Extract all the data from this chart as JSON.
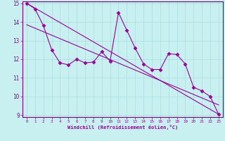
{
  "xlabel": "Windchill (Refroidissement éolien,°C)",
  "bg_color": "#c8f0f0",
  "line_color": "#990099",
  "grid_color": "#aadddd",
  "spine_color": "#770077",
  "ylim": [
    9,
    15
  ],
  "xlim": [
    -0.5,
    23.5
  ],
  "yticks": [
    9,
    10,
    11,
    12,
    13,
    14,
    15
  ],
  "xticks": [
    0,
    1,
    2,
    3,
    4,
    5,
    6,
    7,
    8,
    9,
    10,
    11,
    12,
    13,
    14,
    15,
    16,
    17,
    18,
    19,
    20,
    21,
    22,
    23
  ],
  "line1_x": [
    0,
    1,
    2,
    3,
    4,
    5,
    6,
    7,
    8,
    9,
    10,
    11,
    12,
    13,
    14,
    15,
    16,
    17,
    18,
    19,
    20,
    21,
    22,
    23
  ],
  "line1_y": [
    15.0,
    14.7,
    13.8,
    12.5,
    11.8,
    11.7,
    12.0,
    11.8,
    11.85,
    12.4,
    11.9,
    14.5,
    13.55,
    12.6,
    11.75,
    11.45,
    11.45,
    12.3,
    12.25,
    11.75,
    10.5,
    10.3,
    10.0,
    9.05
  ],
  "line2_x": [
    0,
    23
  ],
  "line2_y": [
    15.0,
    9.05
  ],
  "line3_x": [
    0,
    23
  ],
  "line3_y": [
    13.85,
    9.55
  ]
}
